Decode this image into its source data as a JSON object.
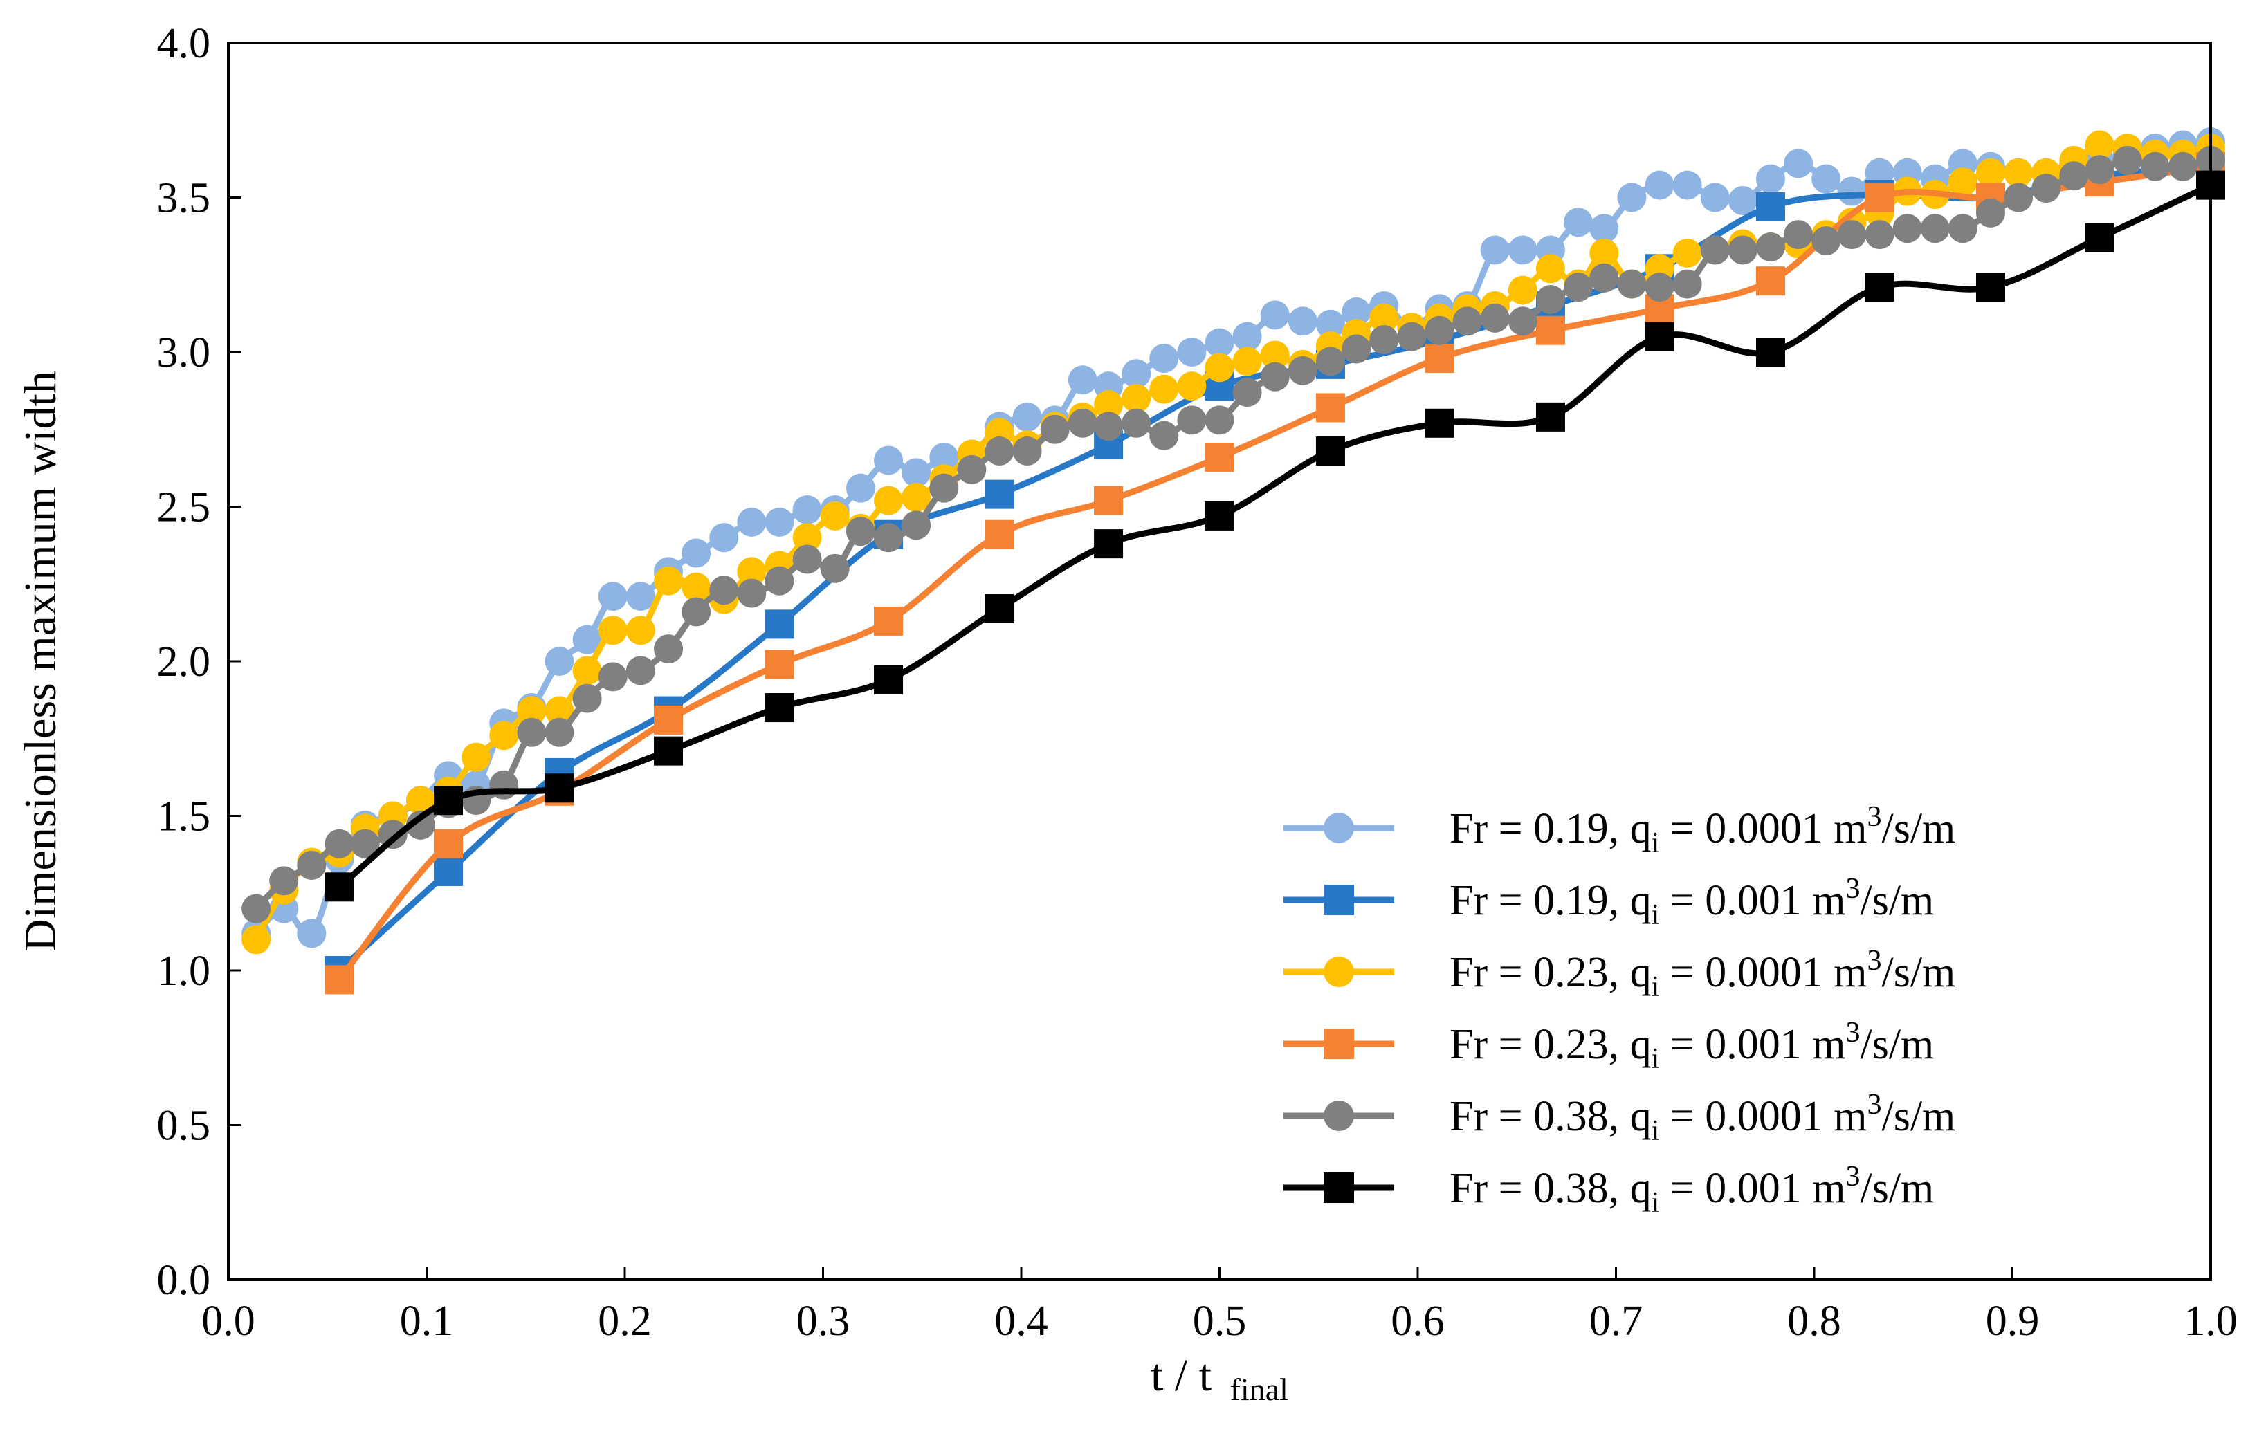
{
  "chart_data": {
    "type": "line",
    "title": "",
    "xlabel": "t / t",
    "xlabel_sub": "final",
    "ylabel": "Dimensionless maximum width",
    "xlim": [
      0.0,
      1.0
    ],
    "ylim": [
      0.0,
      4.0
    ],
    "xticks": [
      "0.0",
      "0.1",
      "0.2",
      "0.3",
      "0.4",
      "0.5",
      "0.6",
      "0.7",
      "0.8",
      "0.9",
      "1.0"
    ],
    "yticks": [
      "0.0",
      "0.5",
      "1.0",
      "1.5",
      "2.0",
      "2.5",
      "3.0",
      "3.5",
      "4.0"
    ],
    "grid": false,
    "legend_position": "right",
    "series": [
      {
        "name": "Fr = 0.19, qi = 0.0001 m3/s/m",
        "label_main": "Fr = 0.19, q",
        "label_sub": "i",
        "label_rest": " = 0.0001 m",
        "label_sup": "3",
        "label_end": "/s/m",
        "color": "#8EB4E3",
        "marker": "circle",
        "x": [
          0.014,
          0.028,
          0.042,
          0.056,
          0.069,
          0.083,
          0.097,
          0.111,
          0.125,
          0.139,
          0.153,
          0.167,
          0.181,
          0.194,
          0.208,
          0.222,
          0.236,
          0.25,
          0.264,
          0.278,
          0.292,
          0.306,
          0.319,
          0.333,
          0.347,
          0.361,
          0.375,
          0.389,
          0.403,
          0.417,
          0.431,
          0.444,
          0.458,
          0.472,
          0.486,
          0.5,
          0.514,
          0.528,
          0.542,
          0.556,
          0.569,
          0.583,
          0.597,
          0.611,
          0.625,
          0.639,
          0.653,
          0.667,
          0.681,
          0.694,
          0.708,
          0.722,
          0.736,
          0.75,
          0.764,
          0.778,
          0.792,
          0.806,
          0.819,
          0.833,
          0.847,
          0.861,
          0.875,
          0.889,
          0.903,
          0.917,
          0.931,
          0.944,
          0.958,
          0.972,
          0.986,
          1.0
        ],
        "y": [
          1.12,
          1.2,
          1.12,
          1.36,
          1.47,
          1.5,
          1.55,
          1.63,
          1.6,
          1.8,
          1.85,
          2.0,
          2.07,
          2.21,
          2.21,
          2.29,
          2.35,
          2.4,
          2.45,
          2.45,
          2.49,
          2.49,
          2.56,
          2.65,
          2.61,
          2.66,
          2.67,
          2.76,
          2.79,
          2.78,
          2.91,
          2.89,
          2.93,
          2.98,
          3.0,
          3.03,
          3.05,
          3.12,
          3.1,
          3.09,
          3.13,
          3.15,
          3.08,
          3.14,
          3.15,
          3.33,
          3.33,
          3.33,
          3.42,
          3.4,
          3.5,
          3.54,
          3.54,
          3.5,
          3.49,
          3.56,
          3.61,
          3.56,
          3.52,
          3.58,
          3.58,
          3.56,
          3.61,
          3.6,
          3.58,
          3.58,
          3.61,
          3.62,
          3.64,
          3.66,
          3.67,
          3.68
        ]
      },
      {
        "name": "Fr = 0.19, qi = 0.001 m3/s/m",
        "label_main": "Fr = 0.19, q",
        "label_sub": "i",
        "label_rest": " = 0.001 m",
        "label_sup": "3",
        "label_end": "/s/m",
        "color": "#2878C8",
        "marker": "square",
        "x": [
          0.056,
          0.111,
          0.167,
          0.222,
          0.278,
          0.333,
          0.389,
          0.444,
          0.5,
          0.556,
          0.611,
          0.667,
          0.722,
          0.778,
          0.833,
          0.889,
          0.944,
          1.0
        ],
        "y": [
          1.0,
          1.32,
          1.64,
          1.84,
          2.12,
          2.41,
          2.54,
          2.7,
          2.89,
          2.96,
          3.04,
          3.15,
          3.27,
          3.47,
          3.51,
          3.5,
          3.57,
          3.6
        ]
      },
      {
        "name": "Fr = 0.23, qi = 0.0001 m3/s/m",
        "label_main": "Fr = 0.23, q",
        "label_sub": "i",
        "label_rest": " = 0.0001 m",
        "label_sup": "3",
        "label_end": "/s/m",
        "color": "#FFC000",
        "marker": "circle",
        "x": [
          0.014,
          0.028,
          0.042,
          0.056,
          0.069,
          0.083,
          0.097,
          0.111,
          0.125,
          0.139,
          0.153,
          0.167,
          0.181,
          0.194,
          0.208,
          0.222,
          0.236,
          0.25,
          0.264,
          0.278,
          0.292,
          0.306,
          0.319,
          0.333,
          0.347,
          0.361,
          0.375,
          0.389,
          0.403,
          0.417,
          0.431,
          0.444,
          0.458,
          0.472,
          0.486,
          0.5,
          0.514,
          0.528,
          0.542,
          0.556,
          0.569,
          0.583,
          0.597,
          0.611,
          0.625,
          0.639,
          0.653,
          0.667,
          0.681,
          0.694,
          0.708,
          0.722,
          0.736,
          0.75,
          0.764,
          0.778,
          0.792,
          0.806,
          0.819,
          0.833,
          0.847,
          0.861,
          0.875,
          0.889,
          0.903,
          0.917,
          0.931,
          0.944,
          0.958,
          0.972,
          0.986,
          1.0
        ],
        "y": [
          1.1,
          1.26,
          1.35,
          1.38,
          1.46,
          1.5,
          1.55,
          1.58,
          1.69,
          1.76,
          1.84,
          1.84,
          1.97,
          2.1,
          2.1,
          2.26,
          2.24,
          2.2,
          2.29,
          2.31,
          2.4,
          2.47,
          2.43,
          2.52,
          2.53,
          2.59,
          2.67,
          2.74,
          2.7,
          2.76,
          2.79,
          2.83,
          2.85,
          2.88,
          2.89,
          2.95,
          2.97,
          2.99,
          2.96,
          3.02,
          3.06,
          3.11,
          3.08,
          3.11,
          3.14,
          3.15,
          3.2,
          3.27,
          3.22,
          3.32,
          3.22,
          3.27,
          3.32,
          3.33,
          3.35,
          3.34,
          3.35,
          3.38,
          3.42,
          3.45,
          3.52,
          3.51,
          3.55,
          3.58,
          3.58,
          3.58,
          3.62,
          3.67,
          3.66,
          3.64,
          3.64,
          3.66
        ]
      },
      {
        "name": "Fr = 0.23, qi = 0.001 m3/s/m",
        "label_main": "Fr = 0.23, q",
        "label_sub": "i",
        "label_rest": " = 0.001 m",
        "label_sup": "3",
        "label_end": "/s/m",
        "color": "#F58232",
        "marker": "square",
        "x": [
          0.056,
          0.111,
          0.167,
          0.222,
          0.278,
          0.333,
          0.389,
          0.444,
          0.5,
          0.556,
          0.611,
          0.667,
          0.722,
          0.778,
          0.833,
          0.889,
          0.944,
          1.0
        ],
        "y": [
          0.97,
          1.41,
          1.58,
          1.81,
          1.99,
          2.13,
          2.41,
          2.52,
          2.66,
          2.82,
          2.98,
          3.07,
          3.14,
          3.23,
          3.5,
          3.5,
          3.55,
          3.6
        ]
      },
      {
        "name": "Fr = 0.38, qi = 0.0001 m3/s/m",
        "label_main": "Fr = 0.38, q",
        "label_sub": "i",
        "label_rest": " = 0.0001 m",
        "label_sup": "3",
        "label_end": "/s/m",
        "color": "#808080",
        "marker": "circle",
        "x": [
          0.014,
          0.028,
          0.042,
          0.056,
          0.069,
          0.083,
          0.097,
          0.111,
          0.125,
          0.139,
          0.153,
          0.167,
          0.181,
          0.194,
          0.208,
          0.222,
          0.236,
          0.25,
          0.264,
          0.278,
          0.292,
          0.306,
          0.319,
          0.333,
          0.347,
          0.361,
          0.375,
          0.389,
          0.403,
          0.417,
          0.431,
          0.444,
          0.458,
          0.472,
          0.486,
          0.5,
          0.514,
          0.528,
          0.542,
          0.556,
          0.569,
          0.583,
          0.597,
          0.611,
          0.625,
          0.639,
          0.653,
          0.667,
          0.681,
          0.694,
          0.708,
          0.722,
          0.736,
          0.75,
          0.764,
          0.778,
          0.792,
          0.806,
          0.819,
          0.833,
          0.847,
          0.861,
          0.875,
          0.889,
          0.903,
          0.917,
          0.931,
          0.944,
          0.958,
          0.972,
          0.986,
          1.0
        ],
        "y": [
          1.2,
          1.29,
          1.34,
          1.41,
          1.41,
          1.44,
          1.47,
          1.54,
          1.55,
          1.6,
          1.77,
          1.77,
          1.88,
          1.95,
          1.97,
          2.04,
          2.16,
          2.23,
          2.22,
          2.26,
          2.33,
          2.3,
          2.42,
          2.4,
          2.44,
          2.56,
          2.62,
          2.68,
          2.68,
          2.75,
          2.77,
          2.76,
          2.77,
          2.73,
          2.78,
          2.78,
          2.87,
          2.92,
          2.94,
          2.97,
          3.01,
          3.04,
          3.05,
          3.07,
          3.1,
          3.11,
          3.1,
          3.17,
          3.21,
          3.24,
          3.22,
          3.21,
          3.22,
          3.33,
          3.33,
          3.34,
          3.38,
          3.36,
          3.38,
          3.38,
          3.4,
          3.4,
          3.4,
          3.45,
          3.5,
          3.53,
          3.57,
          3.59,
          3.62,
          3.6,
          3.6,
          3.62
        ]
      },
      {
        "name": "Fr = 0.38, qi = 0.001 m3/s/m",
        "label_main": "Fr = 0.38, q",
        "label_sub": "i",
        "label_rest": " = 0.001 m",
        "label_sup": "3",
        "label_end": "/s/m",
        "color": "#000000",
        "marker": "square",
        "x": [
          0.056,
          0.111,
          0.167,
          0.222,
          0.278,
          0.333,
          0.389,
          0.444,
          0.5,
          0.556,
          0.611,
          0.667,
          0.722,
          0.778,
          0.833,
          0.889,
          0.944,
          1.0
        ],
        "y": [
          1.27,
          1.55,
          1.59,
          1.71,
          1.85,
          1.94,
          2.17,
          2.38,
          2.47,
          2.68,
          2.77,
          2.79,
          3.05,
          3.0,
          3.21,
          3.21,
          3.37,
          3.54
        ]
      }
    ]
  }
}
